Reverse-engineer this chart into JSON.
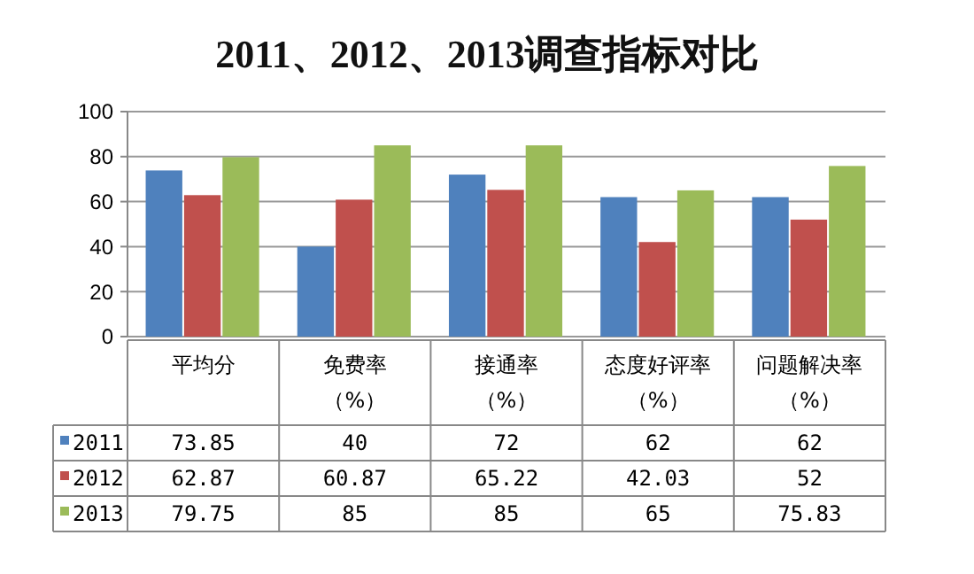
{
  "chart_data": {
    "type": "bar",
    "title": "2011、2012、2013调查指标对比",
    "categories": [
      "平均分",
      "免费率（%）",
      "接通率（%）",
      "态度好评率（%）",
      "问题解决率（%）"
    ],
    "series": [
      {
        "name": "2011",
        "color": "#4f81bd",
        "values": [
          73.85,
          40,
          72,
          62,
          62
        ]
      },
      {
        "name": "2012",
        "color": "#c0504d",
        "values": [
          62.87,
          60.87,
          65.22,
          42.03,
          52
        ]
      },
      {
        "name": "2013",
        "color": "#9bbb59",
        "values": [
          79.75,
          85,
          85,
          65,
          75.83
        ]
      }
    ],
    "ylim": [
      0,
      100
    ],
    "yticks": [
      0,
      20,
      40,
      60,
      80,
      100
    ],
    "grid": "y",
    "data_labels": true,
    "legend": "bottom"
  }
}
